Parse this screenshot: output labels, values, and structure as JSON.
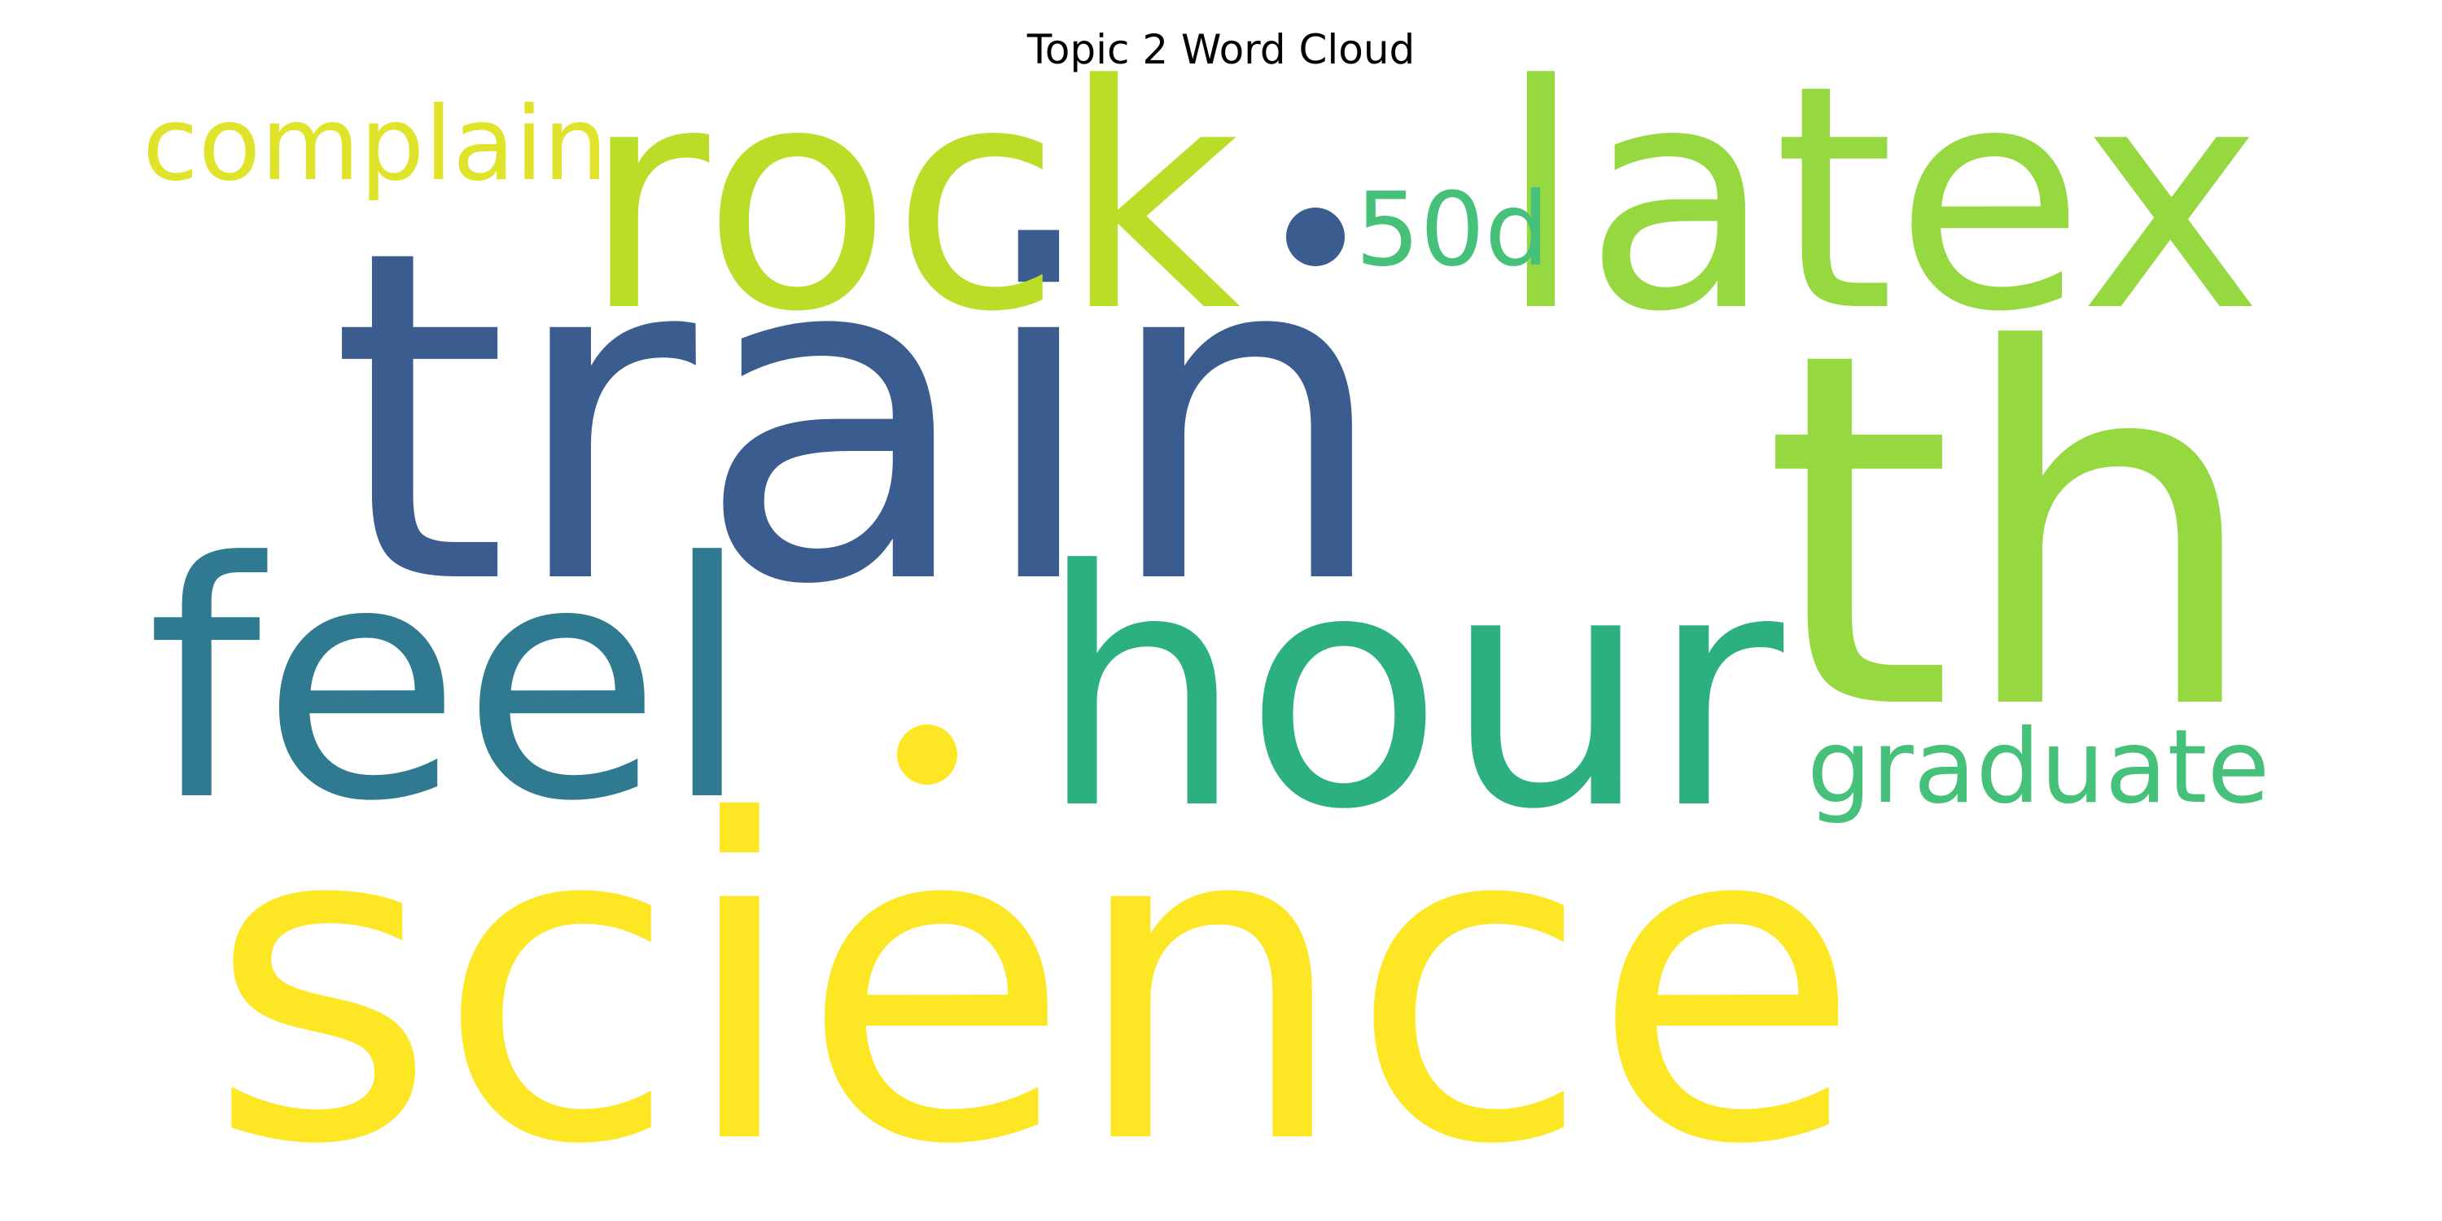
{
  "title": "Topic 2 Word Cloud",
  "colors": {
    "background": "#ffffff",
    "title": "#000000"
  },
  "words": [
    {
      "text": "science",
      "color": "#fde725"
    },
    {
      "text": "train",
      "color": "#3b5c8e"
    },
    {
      "text": "th",
      "color": "#95d840"
    },
    {
      "text": "feel",
      "color": "#2f7a91"
    },
    {
      "text": "hour",
      "color": "#2db07f"
    },
    {
      "text": "rock",
      "color": "#bade28"
    },
    {
      "text": "latex",
      "color": "#95d840"
    },
    {
      "text": "complain",
      "color": "#dfe42b"
    },
    {
      "text": "graduate",
      "color": "#45c17a"
    },
    {
      "text": "50d",
      "color": "#45c17a"
    }
  ],
  "dots": [
    {
      "color": "#3b5c8e"
    },
    {
      "color": "#fde725"
    }
  ]
}
